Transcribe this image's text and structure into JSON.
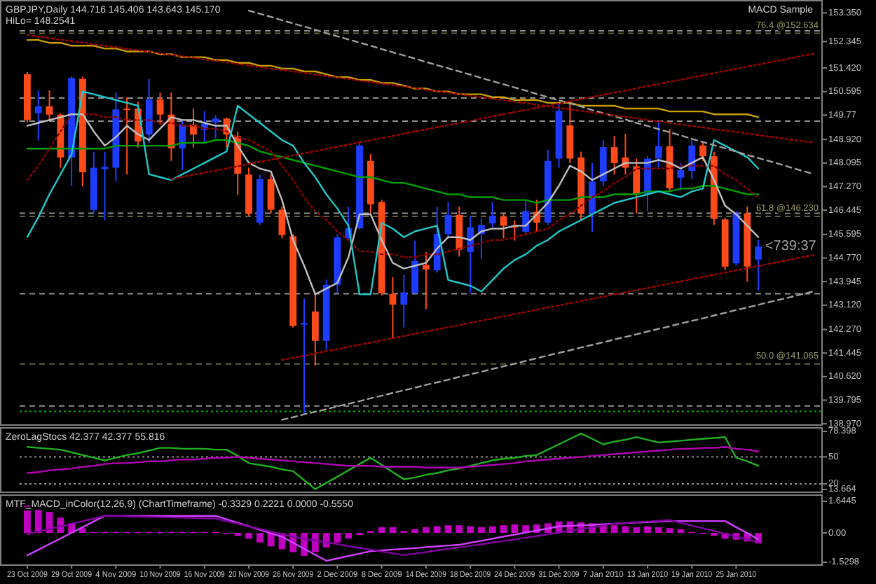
{
  "chart_data": [
    {
      "type": "candlestick",
      "title": "GBPJPY,Daily  144.716 145.406 143.643 145.170",
      "subtitle": "HiLo= 148.2541",
      "ohlc": [
        [
          151.2,
          151.28,
          149.52,
          149.6
        ],
        [
          149.84,
          150.64,
          148.88,
          150.08
        ],
        [
          150.08,
          150.64,
          149.6,
          149.79
        ],
        [
          149.79,
          149.84,
          147.93,
          148.29
        ],
        [
          148.29,
          151.12,
          147.29,
          151.07
        ],
        [
          151.04,
          151.12,
          147.29,
          147.77
        ],
        [
          146.46,
          148.49,
          146.33,
          147.93
        ],
        [
          147.88,
          148.49,
          146.09,
          147.96
        ],
        [
          147.93,
          150.56,
          147.45,
          149.97
        ],
        [
          150.0,
          150.4,
          147.69,
          149.95
        ],
        [
          150.0,
          150.24,
          148.64,
          148.85
        ],
        [
          149.09,
          151.04,
          148.8,
          150.32
        ],
        [
          150.32,
          150.56,
          149.44,
          149.79
        ],
        [
          149.79,
          150.56,
          148.17,
          148.61
        ],
        [
          148.61,
          149.6,
          147.85,
          149.44
        ],
        [
          149.44,
          150.0,
          148.64,
          149.09
        ],
        [
          149.25,
          149.92,
          148.8,
          149.47
        ],
        [
          149.52,
          149.76,
          148.96,
          149.65
        ],
        [
          149.65,
          149.68,
          148.64,
          149.09
        ],
        [
          149.04,
          149.2,
          146.97,
          147.72
        ],
        [
          147.69,
          147.93,
          146.25,
          146.33
        ],
        [
          146.01,
          147.69,
          145.93,
          147.53
        ],
        [
          147.53,
          147.69,
          146.33,
          146.46
        ],
        [
          146.46,
          146.57,
          145.46,
          145.57
        ],
        [
          145.53,
          145.61,
          142.34,
          142.39
        ],
        [
          142.44,
          143.35,
          139.31,
          142.5
        ],
        [
          142.9,
          143.54,
          141.0,
          141.87
        ],
        [
          141.87,
          144.02,
          141.55,
          143.83
        ],
        [
          143.83,
          145.61,
          143.54,
          145.49
        ],
        [
          145.46,
          146.57,
          145.38,
          145.81
        ],
        [
          145.81,
          148.8,
          145.77,
          148.71
        ],
        [
          148.17,
          148.41,
          146.33,
          146.65
        ],
        [
          146.73,
          146.81,
          143.46,
          143.54
        ],
        [
          143.51,
          144.1,
          141.95,
          143.14
        ],
        [
          143.14,
          144.18,
          142.34,
          143.57
        ],
        [
          143.54,
          145.38,
          143.54,
          144.66
        ],
        [
          144.53,
          144.98,
          142.98,
          144.37
        ],
        [
          144.34,
          146.57,
          144.26,
          145.61
        ],
        [
          145.61,
          146.73,
          145.46,
          146.28
        ],
        [
          146.28,
          146.57,
          144.82,
          145.06
        ],
        [
          144.98,
          146.25,
          143.54,
          145.85
        ],
        [
          145.61,
          146.17,
          144.74,
          145.93
        ],
        [
          145.98,
          146.73,
          145.85,
          146.25
        ],
        [
          146.22,
          146.33,
          145.46,
          145.9
        ],
        [
          145.9,
          146.09,
          145.38,
          145.84
        ],
        [
          145.69,
          146.81,
          145.61,
          146.41
        ],
        [
          146.38,
          146.81,
          145.69,
          146.01
        ],
        [
          146.01,
          148.56,
          145.93,
          148.17
        ],
        [
          148.25,
          150.24,
          147.93,
          149.92
        ],
        [
          149.41,
          150.24,
          148.09,
          148.25
        ],
        [
          148.29,
          148.49,
          146.09,
          146.33
        ],
        [
          146.33,
          148.09,
          145.69,
          147.45
        ],
        [
          147.45,
          148.89,
          147.29,
          148.65
        ],
        [
          148.65,
          149.04,
          147.69,
          148.09
        ],
        [
          148.29,
          149.12,
          147.69,
          147.93
        ],
        [
          147.98,
          148.25,
          146.33,
          147.02
        ],
        [
          147.02,
          148.33,
          146.41,
          148.25
        ],
        [
          148.25,
          149.52,
          147.93,
          148.68
        ],
        [
          148.68,
          149.28,
          147.13,
          147.21
        ],
        [
          147.58,
          148.09,
          147.13,
          147.85
        ],
        [
          147.82,
          148.89,
          147.53,
          148.71
        ],
        [
          148.71,
          148.8,
          148.17,
          148.33
        ],
        [
          148.33,
          148.49,
          145.93,
          146.14
        ],
        [
          146.12,
          146.17,
          144.34,
          144.47
        ],
        [
          144.58,
          146.41,
          144.5,
          146.33
        ],
        [
          146.33,
          146.57,
          143.94,
          144.47
        ],
        [
          144.716,
          145.406,
          143.643,
          145.17
        ],
        null,
        null,
        null,
        null,
        null
      ],
      "colors": [
        "#ff4a1a",
        "#1e3cff",
        "#ff4a1a",
        "#ff4a1a",
        "#1e3cff",
        "#ff4a1a",
        "#1e3cff",
        "#1e3cff",
        "#1e3cff",
        "#ff4a1a",
        "#ff4a1a",
        "#1e3cff",
        "#ff4a1a",
        "#ff4a1a",
        "#1e3cff",
        "#ff4a1a",
        "#1e3cff",
        "#1e3cff",
        "#ff4a1a",
        "#ff4a1a",
        "#ff4a1a",
        "#1e3cff",
        "#ff4a1a",
        "#ff4a1a",
        "#ff4a1a",
        "#1e3cff",
        "#ff4a1a",
        "#1e3cff",
        "#1e3cff",
        "#1e3cff",
        "#1e3cff",
        "#ff4a1a",
        "#ff4a1a",
        "#ff4a1a",
        "#1e3cff",
        "#1e3cff",
        "#ff4a1a",
        "#1e3cff",
        "#1e3cff",
        "#ff4a1a",
        "#1e3cff",
        "#1e3cff",
        "#1e3cff",
        "#ff4a1a",
        "#ff4a1a",
        "#1e3cff",
        "#ff4a1a",
        "#1e3cff",
        "#1e3cff",
        "#ff4a1a",
        "#ff4a1a",
        "#1e3cff",
        "#1e3cff",
        "#ff4a1a",
        "#ff4a1a",
        "#ff4a1a",
        "#1e3cff",
        "#1e3cff",
        "#ff4a1a",
        "#1e3cff",
        "#1e3cff",
        "#ff4a1a",
        "#ff4a1a",
        "#ff4a1a",
        "#1e3cff",
        "#ff4a1a",
        "#1e3cff",
        null,
        null,
        null,
        null,
        null
      ],
      "series": [
        {
          "type": "line",
          "color": "#c8a000",
          "values": [
            152.4,
            152.4,
            152.3,
            152.3,
            152.2,
            152.2,
            152.2,
            152.1,
            152.1,
            152.0,
            152.0,
            152.0,
            151.9,
            151.9,
            151.8,
            151.8,
            151.8,
            151.7,
            151.7,
            151.6,
            151.6,
            151.5,
            151.5,
            151.4,
            151.4,
            151.3,
            151.3,
            151.2,
            151.1,
            151.1,
            151.0,
            151.0,
            150.9,
            150.9,
            150.8,
            150.7,
            150.7,
            150.6,
            150.6,
            150.5,
            150.5,
            150.5,
            150.4,
            150.4,
            150.3,
            150.3,
            150.3,
            150.2,
            150.2,
            150.2,
            150.1,
            150.1,
            150.1,
            150.1,
            150.0,
            150.0,
            150.0,
            150.0,
            149.9,
            149.9,
            149.9,
            149.9,
            149.8,
            149.8,
            149.8,
            149.8,
            149.7,
            null,
            null,
            null,
            null,
            null
          ]
        },
        {
          "type": "line",
          "color": "#00a000",
          "values": [
            148.6,
            148.6,
            148.6,
            148.6,
            148.6,
            148.6,
            148.6,
            148.6,
            148.7,
            148.7,
            148.7,
            148.7,
            148.7,
            148.7,
            148.8,
            148.8,
            148.8,
            148.9,
            148.9,
            148.8,
            148.7,
            148.5,
            148.4,
            148.3,
            148.2,
            148.1,
            148.0,
            147.9,
            147.8,
            147.7,
            147.6,
            147.6,
            147.5,
            147.4,
            147.4,
            147.3,
            147.2,
            147.1,
            147.0,
            147.0,
            146.9,
            146.9,
            146.9,
            146.8,
            146.8,
            146.8,
            146.7,
            146.8,
            146.8,
            146.8,
            146.9,
            146.9,
            146.9,
            147.0,
            147.0,
            147.0,
            147.1,
            147.1,
            147.1,
            147.2,
            147.2,
            147.3,
            147.3,
            147.2,
            147.1,
            147.0,
            147.0,
            null,
            null,
            null,
            null,
            null
          ]
        },
        {
          "type": "line",
          "color": "#8b0000",
          "line_style": "dotted",
          "values": [
            147.5,
            148.0,
            148.6,
            149.2,
            149.8,
            149.8,
            149.8,
            149.7,
            149.7,
            149.6,
            149.6,
            149.6,
            149.5,
            149.5,
            149.4,
            149.4,
            149.3,
            149.3,
            149.2,
            149.0,
            148.9,
            148.7,
            148.5,
            148.0,
            147.5,
            146.9,
            146.4,
            146.1,
            145.7,
            145.4,
            145.0,
            145.0,
            144.9,
            144.9,
            144.8,
            144.8,
            144.9,
            144.9,
            145.0,
            145.1,
            145.2,
            145.3,
            145.4,
            145.4,
            145.5,
            145.6,
            145.7,
            145.8,
            146.1,
            146.3,
            146.6,
            146.9,
            147.1,
            147.4,
            147.6,
            147.9,
            147.9,
            147.9,
            147.9,
            148.0,
            148.0,
            148.0,
            148.0,
            147.7,
            147.5,
            147.2,
            146.9,
            null,
            null,
            null,
            null,
            null
          ]
        },
        {
          "type": "line",
          "color": "#c0c0c0",
          "values": [
            149.4,
            149.5,
            149.6,
            149.7,
            149.8,
            149.8,
            149.2,
            148.7,
            149.0,
            149.4,
            149.1,
            148.9,
            149.3,
            149.7,
            149.6,
            149.6,
            149.5,
            149.4,
            149.4,
            148.7,
            148.1,
            147.9,
            147.8,
            146.8,
            145.4,
            144.5,
            143.5,
            143.7,
            143.9,
            144.8,
            146.3,
            146.3,
            145.4,
            144.6,
            144.4,
            144.5,
            144.6,
            145.1,
            145.5,
            145.5,
            145.4,
            145.7,
            145.8,
            145.8,
            145.9,
            145.9,
            146.3,
            146.7,
            147.3,
            148.0,
            147.8,
            147.5,
            147.7,
            147.9,
            148.1,
            148.1,
            148.1,
            148.2,
            148.1,
            147.9,
            148.1,
            148.3,
            147.5,
            146.6,
            146.3,
            145.9,
            145.5,
            null,
            null,
            null,
            null,
            null
          ]
        },
        {
          "type": "line",
          "color": "#20c8c8",
          "values": [
            145.5,
            146.2,
            147.0,
            147.7,
            148.4,
            150.6,
            150.5,
            150.4,
            150.3,
            150.2,
            150.1,
            147.7,
            147.6,
            147.5,
            147.7,
            147.9,
            148.1,
            148.3,
            148.5,
            150.1,
            149.8,
            149.5,
            149.2,
            148.9,
            148.7,
            148.1,
            147.6,
            147.0,
            146.5,
            145.9,
            143.5,
            143.5,
            146.0,
            145.8,
            145.5,
            145.7,
            145.8,
            145.9,
            144.0,
            143.9,
            143.8,
            143.6,
            144.0,
            144.4,
            144.7,
            144.9,
            145.2,
            145.4,
            145.7,
            145.9,
            146.1,
            146.3,
            146.5,
            146.7,
            146.8,
            146.9,
            147.0,
            147.1,
            147.0,
            146.9,
            147.1,
            147.2,
            148.9,
            148.7,
            148.5,
            148.3,
            147.9,
            null,
            null,
            null,
            null,
            null
          ]
        },
        {
          "type": "line",
          "color": "#a0a0a0",
          "line_style": "dashed",
          "values": [
            null,
            null,
            null,
            null,
            null,
            null,
            null,
            null,
            null,
            null,
            null,
            null,
            null,
            null,
            null,
            null,
            null,
            null,
            null,
            null,
            153.43,
            153.32,
            153.21,
            153.09,
            152.98,
            152.87,
            152.76,
            152.64,
            152.53,
            152.42,
            152.31,
            152.2,
            152.08,
            151.97,
            151.86,
            151.75,
            151.63,
            151.52,
            151.41,
            151.3,
            151.19,
            151.07,
            150.96,
            150.85,
            150.74,
            150.63,
            150.51,
            150.4,
            150.29,
            150.18,
            150.07,
            149.95,
            149.84,
            149.73,
            149.62,
            149.5,
            149.39,
            149.28,
            149.17,
            149.06,
            148.94,
            148.83,
            148.72,
            148.61,
            148.49,
            148.38,
            148.27,
            148.16,
            148.05,
            147.93,
            147.82,
            147.71
          ]
        },
        {
          "type": "line",
          "color": "#a0a0a0",
          "line_style": "dashed",
          "values": [
            null,
            null,
            null,
            null,
            null,
            null,
            null,
            null,
            null,
            null,
            null,
            null,
            null,
            null,
            null,
            null,
            null,
            null,
            null,
            null,
            null,
            null,
            null,
            139.11,
            139.2,
            139.3,
            139.39,
            139.48,
            139.58,
            139.67,
            139.76,
            139.86,
            139.95,
            140.05,
            140.14,
            140.23,
            140.33,
            140.42,
            140.51,
            140.61,
            140.7,
            140.79,
            140.89,
            140.98,
            141.07,
            141.17,
            141.26,
            141.36,
            141.45,
            141.54,
            141.64,
            141.73,
            141.82,
            141.92,
            142.01,
            142.1,
            142.2,
            142.29,
            142.38,
            142.48,
            142.57,
            142.66,
            142.76,
            142.85,
            142.95,
            143.04,
            143.13,
            143.23,
            143.32,
            143.41,
            143.51,
            143.6
          ]
        },
        {
          "type": "line",
          "color": "#a00000",
          "line_style": "dotted",
          "values": [
            null,
            null,
            null,
            null,
            null,
            null,
            null,
            null,
            null,
            null,
            null,
            null,
            null,
            147.53,
            147.61,
            147.68,
            147.76,
            147.83,
            147.91,
            147.98,
            148.06,
            148.14,
            148.21,
            148.29,
            148.36,
            148.44,
            148.51,
            148.59,
            148.67,
            148.74,
            148.82,
            148.89,
            148.97,
            149.04,
            149.12,
            149.2,
            149.27,
            149.35,
            149.42,
            149.5,
            149.57,
            149.65,
            149.73,
            149.8,
            149.88,
            149.95,
            150.03,
            150.1,
            150.18,
            150.26,
            150.33,
            150.41,
            150.48,
            150.56,
            150.63,
            150.71,
            150.79,
            150.86,
            150.94,
            151.01,
            151.09,
            151.16,
            151.24,
            151.32,
            151.39,
            151.47,
            151.54,
            151.62,
            151.69,
            151.77,
            151.85,
            151.92
          ]
        },
        {
          "type": "line",
          "color": "#a00000",
          "line_style": "dotted",
          "values": [
            null,
            null,
            null,
            null,
            null,
            null,
            null,
            null,
            null,
            null,
            null,
            null,
            null,
            null,
            null,
            null,
            null,
            null,
            null,
            null,
            null,
            null,
            null,
            141.2,
            141.28,
            141.35,
            141.43,
            141.51,
            141.58,
            141.66,
            141.74,
            141.81,
            141.89,
            141.96,
            142.04,
            142.12,
            142.19,
            142.27,
            142.35,
            142.42,
            142.5,
            142.58,
            142.65,
            142.73,
            142.81,
            142.88,
            142.96,
            143.04,
            143.11,
            143.19,
            143.27,
            143.34,
            143.42,
            143.5,
            143.57,
            143.65,
            143.72,
            143.8,
            143.88,
            143.95,
            144.03,
            144.11,
            144.18,
            144.26,
            144.34,
            144.41,
            144.49,
            144.57,
            144.64,
            144.72,
            144.8,
            144.87
          ]
        },
        {
          "type": "line",
          "color": "#a00000",
          "line_style": "dotted",
          "values": [
            152.57,
            152.52,
            152.46,
            152.41,
            152.36,
            152.31,
            152.25,
            152.2,
            152.15,
            152.09,
            152.04,
            151.99,
            151.93,
            151.88,
            151.83,
            151.78,
            151.72,
            151.67,
            151.62,
            151.56,
            151.51,
            151.46,
            151.4,
            151.35,
            151.3,
            151.25,
            151.19,
            151.14,
            151.09,
            151.03,
            150.98,
            150.93,
            150.87,
            150.82,
            150.77,
            150.72,
            150.66,
            150.61,
            150.56,
            150.5,
            150.45,
            150.4,
            150.35,
            150.29,
            150.24,
            150.19,
            150.13,
            150.08,
            150.03,
            149.97,
            149.92,
            149.87,
            149.82,
            149.76,
            149.71,
            149.66,
            149.6,
            149.55,
            149.5,
            149.44,
            149.39,
            149.34,
            149.28,
            149.23,
            149.18,
            149.13,
            149.07,
            149.02,
            148.97,
            148.91,
            148.86,
            148.81
          ]
        }
      ],
      "ref_lines": [
        {
          "axis": "y",
          "value": 152.72,
          "color": "#909090",
          "line_style": "dashed"
        },
        {
          "axis": "y",
          "value": 152.634,
          "label": "76.4 @152.634",
          "color": "#606040",
          "line_style": "dashed"
        },
        {
          "axis": "y",
          "value": 150.37,
          "color": "#909090",
          "line_style": "dashed"
        },
        {
          "axis": "y",
          "value": 149.56,
          "color": "#909090",
          "line_style": "dashed"
        },
        {
          "axis": "y",
          "value": 146.34,
          "color": "#909090",
          "line_style": "dashed"
        },
        {
          "axis": "y",
          "value": 146.23,
          "label": "61.8 @146.230",
          "color": "#606040",
          "line_style": "dashed"
        },
        {
          "axis": "y",
          "value": 143.52,
          "color": "#909090",
          "line_style": "dashed"
        },
        {
          "axis": "y",
          "value": 141.065,
          "label": "50.0 @141.065",
          "color": "#606040",
          "line_style": "dashed"
        },
        {
          "axis": "y",
          "value": 139.59,
          "color": "#909090",
          "line_style": "dashed"
        },
        {
          "axis": "y",
          "value": 139.4,
          "color": "#00b000",
          "line_style": "dotted"
        }
      ],
      "annotations": [
        "MACD Sample",
        "<739:37"
      ],
      "ylim": [
        138.9,
        153.8
      ],
      "yticks": [
        {
          "value": 153.35,
          "label": "153.350"
        },
        152.345,
        {
          "value": 151.42,
          "label": "151.420"
        },
        150.595,
        149.77,
        {
          "value": 148.92,
          "label": "148.920"
        },
        148.095,
        {
          "value": 147.27,
          "label": "147.270"
        },
        146.445,
        145.595,
        {
          "value": 144.77,
          "label": "144.770"
        },
        143.945,
        {
          "value": 143.12,
          "label": "143.120"
        },
        {
          "value": 142.27,
          "label": "142.270"
        },
        141.445,
        {
          "value": 140.62,
          "label": "140.620"
        },
        139.795,
        {
          "value": 138.97,
          "label": "138.970"
        }
      ],
      "tick_labels": "y"
    },
    {
      "type": "line",
      "title": "ZeroLagStocs 42.377 42.377 55.816",
      "series": [
        {
          "color": "#20b020",
          "values": [
            61,
            60,
            59,
            58,
            55,
            52,
            49,
            46,
            49,
            52,
            54,
            57,
            60,
            60,
            59,
            59,
            59,
            58,
            58,
            51,
            43,
            41,
            39,
            36,
            34,
            24,
            14,
            21,
            28,
            35,
            42,
            49,
            41,
            33,
            25,
            27,
            30,
            32,
            35,
            37,
            40,
            43,
            46,
            48,
            49,
            51,
            52,
            58,
            64,
            70,
            76,
            70,
            64,
            67,
            69,
            72,
            69,
            66,
            67,
            68,
            69,
            70,
            71,
            72,
            49,
            45,
            40,
            null,
            null,
            null,
            null,
            null
          ]
        },
        {
          "color": "#b000b0",
          "values": [
            32,
            33,
            35,
            36,
            37,
            39,
            40,
            42,
            43,
            43,
            44,
            45,
            45,
            46,
            47,
            47,
            48,
            49,
            49,
            50,
            49,
            48,
            47,
            46,
            45,
            44,
            43,
            42,
            41,
            40,
            40,
            40,
            39,
            39,
            39,
            39,
            38,
            38,
            38,
            38,
            39,
            40,
            41,
            42,
            43,
            45,
            46,
            47,
            48,
            49,
            50,
            51,
            52,
            53,
            54,
            55,
            56,
            57,
            58,
            59,
            59,
            60,
            60,
            61,
            59,
            58,
            56,
            null,
            null,
            null,
            null,
            null
          ]
        }
      ],
      "ref_lines": [
        {
          "axis": "y",
          "value": 50,
          "color": "#909090",
          "line_style": "dotted"
        },
        {
          "axis": "y",
          "value": 20,
          "color": "#909090",
          "line_style": "dotted"
        }
      ],
      "ylim": [
        13.664,
        78.398
      ],
      "yticks": [
        78.398,
        50,
        20,
        13.664
      ],
      "tick_labels": "y"
    },
    {
      "type": "bar",
      "title": "MTF_MACD_inColor(12,26,9) (ChartTimeframe) -0.3329 0.2221 0.0000 -0.5550",
      "categories": [
        "23 Oct 2009",
        null,
        null,
        null,
        "29 Oct 2009",
        null,
        null,
        null,
        "4 Nov 2009",
        null,
        null,
        null,
        "10 Nov 2009",
        null,
        null,
        null,
        "16 Nov 2009",
        null,
        null,
        null,
        "20 Nov 2009",
        null,
        null,
        null,
        "26 Nov 2009",
        null,
        null,
        null,
        "2 Dec 2009",
        null,
        null,
        null,
        "8 Dec 2009",
        null,
        null,
        null,
        "14 Dec 2009",
        null,
        null,
        null,
        "18 Dec 2009",
        null,
        null,
        null,
        "24 Dec 2009",
        null,
        null,
        null,
        "31 Dec 2009",
        null,
        null,
        null,
        "7 Jan 2010",
        null,
        null,
        null,
        "13 Jan 2010",
        null,
        null,
        null,
        "19 Jan 2010",
        null,
        null,
        null,
        "25 Jan 2010",
        null,
        null,
        null,
        null,
        null,
        null,
        null
      ],
      "series": [
        {
          "color": "#c000c0",
          "values": [
            1.45,
            1.2,
            1.1,
            0.8,
            0.5,
            0.25,
            0.05,
            0.05,
            0.05,
            0.05,
            0.05,
            0.05,
            0.05,
            0.05,
            0.05,
            0.05,
            0.05,
            0.05,
            -0.05,
            -0.15,
            -0.3,
            -0.5,
            -0.7,
            -0.85,
            -1.0,
            -1.2,
            -1.0,
            -0.75,
            -0.5,
            -0.3,
            -0.1,
            0.1,
            0.3,
            0.3,
            0.1,
            0.2,
            0.3,
            0.35,
            0.4,
            0.4,
            0.35,
            0.3,
            0.35,
            0.4,
            0.45,
            0.4,
            0.45,
            0.5,
            0.6,
            0.6,
            0.55,
            0.5,
            0.4,
            0.4,
            0.35,
            0.3,
            0.35,
            0.3,
            0.25,
            0.2,
            0.05,
            0.0,
            -0.15,
            -0.3,
            -0.35,
            -0.45,
            -0.55,
            null,
            null,
            null,
            null,
            null
          ]
        },
        {
          "type": "line",
          "color": "#d040ff",
          "values": [
            -1.17,
            -0.88,
            -0.58,
            -0.29,
            0.01,
            0.3,
            0.6,
            0.89,
            0.89,
            0.89,
            0.89,
            0.89,
            0.89,
            0.89,
            0.89,
            0.89,
            0.89,
            0.89,
            0.71,
            0.53,
            0.35,
            0.16,
            -0.02,
            -0.2,
            -0.51,
            -0.83,
            -1.14,
            -1.45,
            -1.33,
            -1.2,
            -1.08,
            -0.95,
            -0.91,
            -0.87,
            -0.83,
            -0.79,
            -0.74,
            -0.7,
            -0.66,
            -0.62,
            -0.51,
            -0.41,
            -0.3,
            -0.19,
            -0.09,
            0.02,
            0.13,
            0.23,
            0.34,
            0.37,
            0.4,
            0.42,
            0.45,
            0.48,
            0.51,
            0.54,
            0.56,
            0.59,
            0.62,
            0.62,
            0.62,
            0.62,
            0.62,
            0.62,
            0.3,
            -0.01,
            -0.33,
            null,
            null,
            null,
            null,
            null
          ]
        },
        {
          "type": "line",
          "color": "#8000a0",
          "values": [
            -0.07,
            0.07,
            0.2,
            0.34,
            0.48,
            0.62,
            0.75,
            0.89,
            0.88,
            0.86,
            0.85,
            0.83,
            0.82,
            0.81,
            0.79,
            0.78,
            0.76,
            0.75,
            0.61,
            0.48,
            0.34,
            0.21,
            0.07,
            -0.06,
            -0.2,
            -0.3,
            -0.39,
            -0.49,
            -0.58,
            -0.68,
            -0.78,
            -0.87,
            -0.97,
            -1.06,
            -1.16,
            -1.08,
            -1.0,
            -0.91,
            -0.83,
            -0.75,
            -0.67,
            -0.59,
            -0.5,
            -0.42,
            -0.34,
            -0.25,
            -0.16,
            -0.07,
            0.02,
            0.12,
            0.21,
            0.3,
            0.39,
            0.48,
            0.52,
            0.56,
            0.59,
            0.63,
            0.67,
            0.53,
            0.38,
            0.24,
            0.1,
            -0.05,
            -0.19,
            -0.34,
            -0.48,
            null,
            null,
            null,
            null,
            null
          ]
        }
      ],
      "ylim": [
        -1.5298,
        1.6445
      ],
      "yticks": [
        1.6445,
        {
          "value": 0,
          "label": "0.00"
        },
        -1.5298
      ]
    }
  ]
}
